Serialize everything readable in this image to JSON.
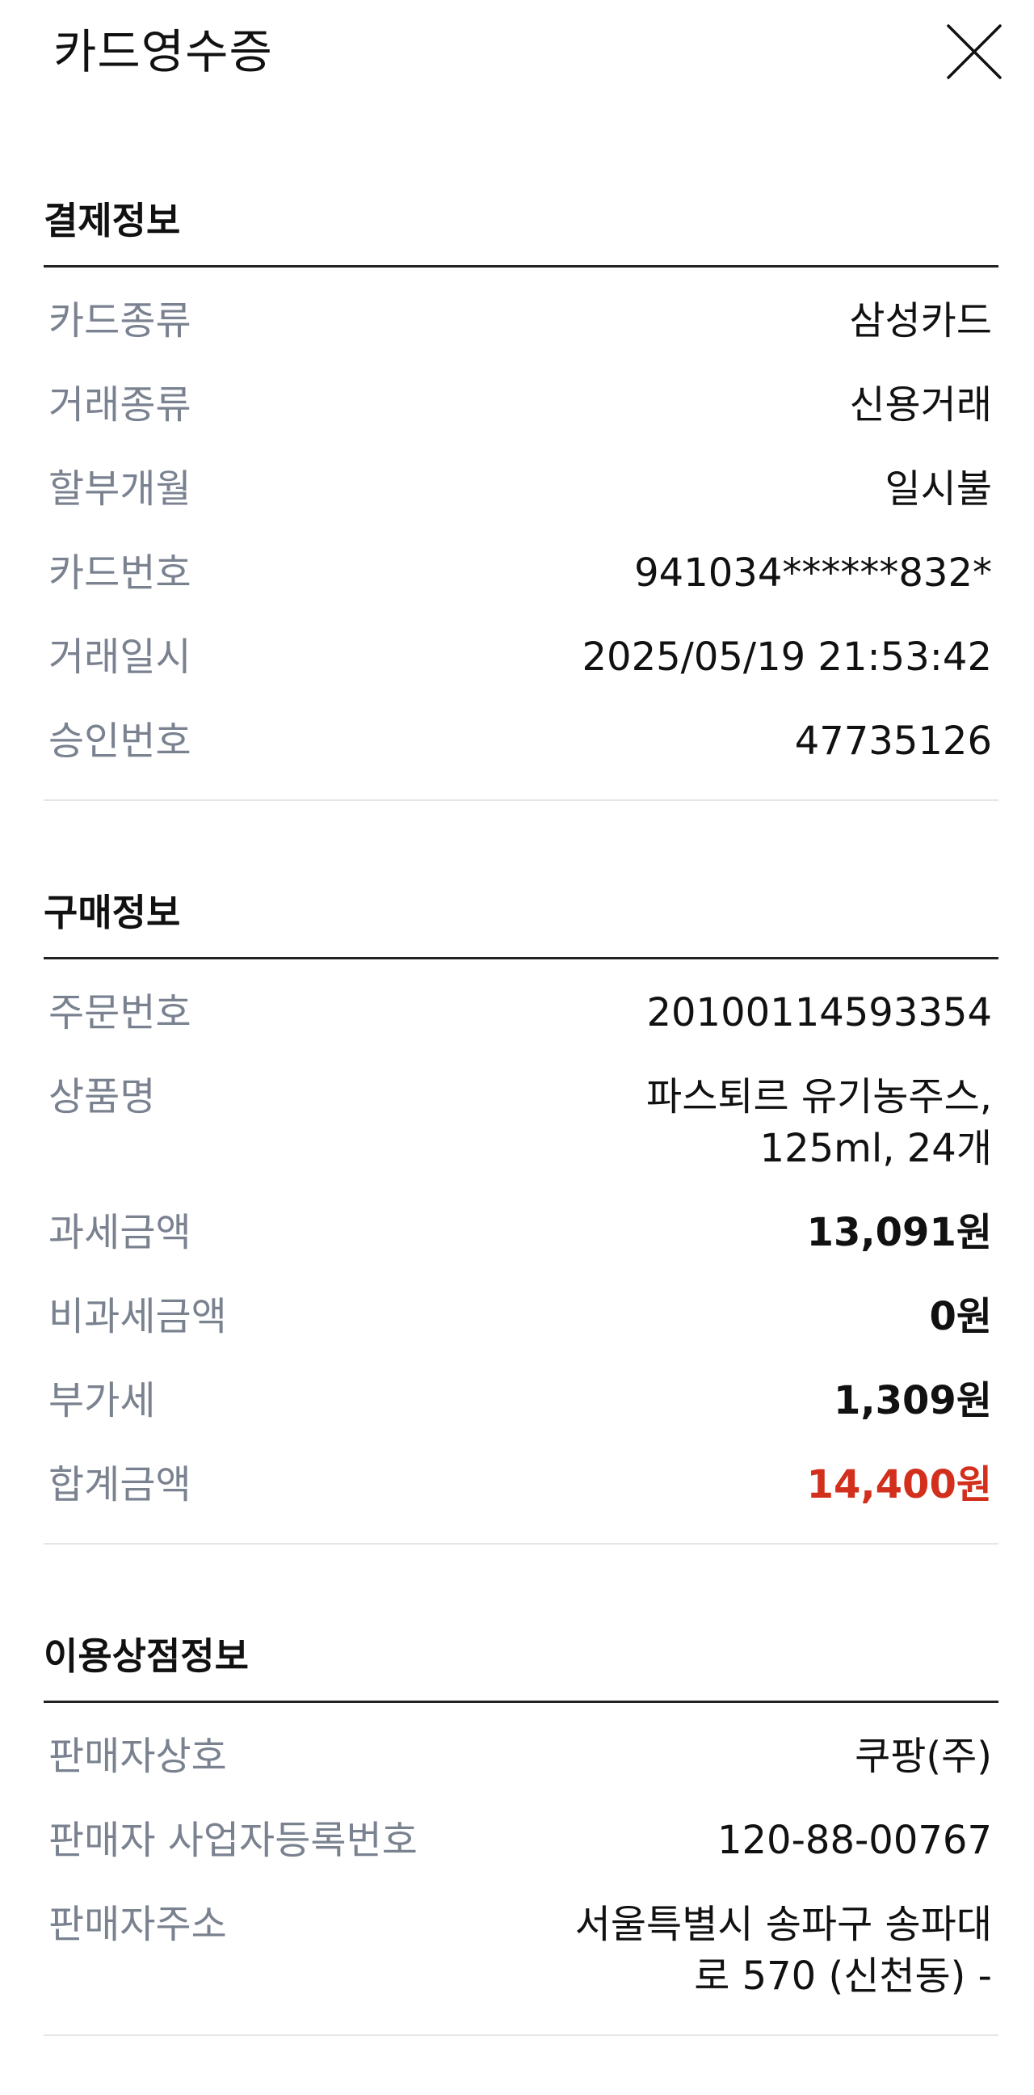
{
  "header": {
    "title": "카드영수증",
    "close_icon": "close-icon"
  },
  "payment": {
    "title": "결제정보",
    "rows": [
      {
        "label": "카드종류",
        "value": "삼성카드"
      },
      {
        "label": "거래종류",
        "value": "신용거래"
      },
      {
        "label": "할부개월",
        "value": "일시불"
      },
      {
        "label": "카드번호",
        "value": "941034******832*"
      },
      {
        "label": "거래일시",
        "value": "2025/05/19 21:53:42"
      },
      {
        "label": "승인번호",
        "value": "47735126"
      }
    ]
  },
  "purchase": {
    "title": "구매정보",
    "rows": [
      {
        "label": "주문번호",
        "value": "20100114593354"
      },
      {
        "label": "상품명",
        "value_line1": "파스퇴르 유기농주스,",
        "value_line2": "125ml, 24개"
      },
      {
        "label": "과세금액",
        "value": "13,091원"
      },
      {
        "label": "비과세금액",
        "value": "0원"
      },
      {
        "label": "부가세",
        "value": "1,309원"
      },
      {
        "label": "합계금액",
        "value": "14,400원"
      }
    ],
    "total_color": "#d2301c"
  },
  "merchant": {
    "title": "이용상점정보",
    "rows": [
      {
        "label": "판매자상호",
        "value": "쿠팡(주)"
      },
      {
        "label": "판매자 사업자등록번호",
        "value": "120-88-00767"
      },
      {
        "label": "판매자주소",
        "value_line1": "서울특별시 송파구 송파대",
        "value_line2": "로 570 (신천동) -"
      }
    ]
  }
}
